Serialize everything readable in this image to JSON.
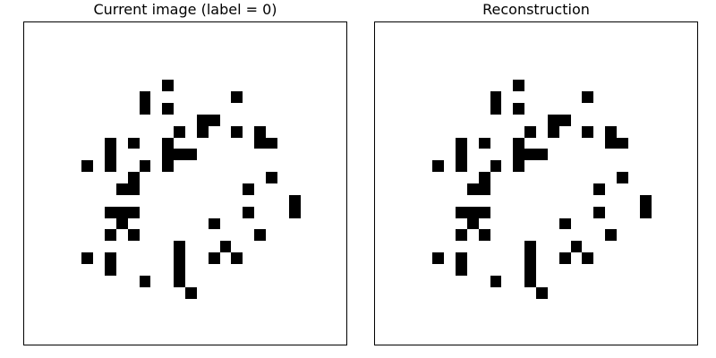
{
  "panels": [
    {
      "title": "Current image (label = 0)",
      "grid_size": 28,
      "pixels": [
        [
          12,
          5
        ],
        [
          10,
          6
        ],
        [
          18,
          6
        ],
        [
          10,
          7
        ],
        [
          12,
          7
        ],
        [
          15,
          8
        ],
        [
          16,
          8
        ],
        [
          13,
          9
        ],
        [
          15,
          9
        ],
        [
          18,
          9
        ],
        [
          20,
          9
        ],
        [
          7,
          10
        ],
        [
          9,
          10
        ],
        [
          12,
          10
        ],
        [
          20,
          10
        ],
        [
          21,
          10
        ],
        [
          7,
          11
        ],
        [
          12,
          11
        ],
        [
          13,
          11
        ],
        [
          14,
          11
        ],
        [
          5,
          12
        ],
        [
          7,
          12
        ],
        [
          10,
          12
        ],
        [
          12,
          12
        ],
        [
          9,
          13
        ],
        [
          21,
          13
        ],
        [
          8,
          14
        ],
        [
          9,
          14
        ],
        [
          19,
          14
        ],
        [
          23,
          15
        ],
        [
          7,
          16
        ],
        [
          8,
          16
        ],
        [
          9,
          16
        ],
        [
          19,
          16
        ],
        [
          23,
          16
        ],
        [
          8,
          17
        ],
        [
          16,
          17
        ],
        [
          7,
          18
        ],
        [
          9,
          18
        ],
        [
          20,
          18
        ],
        [
          13,
          19
        ],
        [
          17,
          19
        ],
        [
          5,
          20
        ],
        [
          7,
          20
        ],
        [
          13,
          20
        ],
        [
          16,
          20
        ],
        [
          18,
          20
        ],
        [
          7,
          21
        ],
        [
          13,
          21
        ],
        [
          10,
          22
        ],
        [
          13,
          22
        ],
        [
          14,
          23
        ]
      ]
    },
    {
      "title": "Reconstruction",
      "grid_size": 28,
      "pixels": [
        [
          12,
          5
        ],
        [
          10,
          6
        ],
        [
          18,
          6
        ],
        [
          10,
          7
        ],
        [
          12,
          7
        ],
        [
          15,
          8
        ],
        [
          16,
          8
        ],
        [
          13,
          9
        ],
        [
          15,
          9
        ],
        [
          18,
          9
        ],
        [
          20,
          9
        ],
        [
          7,
          10
        ],
        [
          9,
          10
        ],
        [
          12,
          10
        ],
        [
          20,
          10
        ],
        [
          21,
          10
        ],
        [
          7,
          11
        ],
        [
          12,
          11
        ],
        [
          13,
          11
        ],
        [
          14,
          11
        ],
        [
          5,
          12
        ],
        [
          7,
          12
        ],
        [
          10,
          12
        ],
        [
          12,
          12
        ],
        [
          9,
          13
        ],
        [
          21,
          13
        ],
        [
          8,
          14
        ],
        [
          9,
          14
        ],
        [
          19,
          14
        ],
        [
          23,
          15
        ],
        [
          7,
          16
        ],
        [
          8,
          16
        ],
        [
          9,
          16
        ],
        [
          19,
          16
        ],
        [
          23,
          16
        ],
        [
          8,
          17
        ],
        [
          16,
          17
        ],
        [
          7,
          18
        ],
        [
          9,
          18
        ],
        [
          20,
          18
        ],
        [
          13,
          19
        ],
        [
          17,
          19
        ],
        [
          5,
          20
        ],
        [
          7,
          20
        ],
        [
          13,
          20
        ],
        [
          16,
          20
        ],
        [
          18,
          20
        ],
        [
          7,
          21
        ],
        [
          13,
          21
        ],
        [
          10,
          22
        ],
        [
          13,
          22
        ],
        [
          14,
          23
        ]
      ]
    }
  ]
}
